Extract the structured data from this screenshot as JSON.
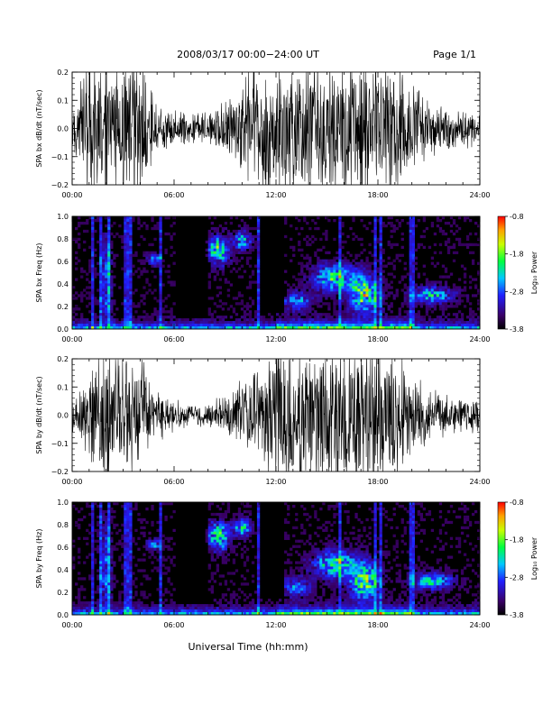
{
  "header": {
    "date_range": "2008/03/17  00:00−24:00 UT",
    "page": "Page 1/1"
  },
  "xaxis": {
    "label": "Universal Time (hh:mm)",
    "ticks": [
      "00:00",
      "06:00",
      "12:00",
      "18:00",
      "24:00"
    ]
  },
  "colorbar": {
    "label": "Log₁₀ Power",
    "ticks": [
      "-0.8",
      "-1.8",
      "-2.8",
      "-3.8"
    ],
    "min": -3.8,
    "max": -0.8
  },
  "chart_data": [
    {
      "type": "line",
      "ylabel": "SPA bx dB/dt (nT/sec)",
      "y_ticks": [
        "0.2",
        "0.1",
        "0.0",
        "−0.1",
        "−0.2"
      ],
      "xlim": [
        0,
        24
      ],
      "ylim": [
        -0.2,
        0.2
      ],
      "envelope_hours": [
        0,
        1,
        1.5,
        2,
        3,
        4,
        5,
        6,
        7,
        8,
        9,
        10,
        11,
        12,
        13,
        14,
        15,
        16,
        17,
        18,
        19,
        20,
        21,
        22,
        23,
        24
      ],
      "envelope_amplitude": [
        0.05,
        0.2,
        0.2,
        0.2,
        0.2,
        0.18,
        0.08,
        0.05,
        0.04,
        0.05,
        0.08,
        0.15,
        0.2,
        0.2,
        0.2,
        0.2,
        0.2,
        0.2,
        0.2,
        0.2,
        0.2,
        0.15,
        0.08,
        0.06,
        0.05,
        0.05
      ]
    },
    {
      "type": "heatmap",
      "ylabel": "SPA bx Freq (Hz)",
      "y_ticks": [
        "1.0",
        "0.8",
        "0.6",
        "0.4",
        "0.2",
        "0.0"
      ],
      "xlim": [
        0,
        24
      ],
      "ylim": [
        0,
        1.0
      ],
      "zlim": [
        -3.8,
        -0.8
      ]
    },
    {
      "type": "line",
      "ylabel": "SPA by dB/dt (nT/sec)",
      "y_ticks": [
        "0.2",
        "0.1",
        "0.0",
        "−0.1",
        "−0.2"
      ],
      "xlim": [
        0,
        24
      ],
      "ylim": [
        -0.2,
        0.2
      ],
      "envelope_hours": [
        0,
        1,
        1.5,
        2,
        3,
        4,
        5,
        6,
        7,
        8,
        9,
        10,
        11,
        12,
        13,
        14,
        15,
        16,
        17,
        18,
        19,
        20,
        21,
        22,
        23,
        24
      ],
      "envelope_amplitude": [
        0.05,
        0.12,
        0.2,
        0.2,
        0.18,
        0.15,
        0.08,
        0.05,
        0.03,
        0.04,
        0.06,
        0.1,
        0.15,
        0.2,
        0.2,
        0.2,
        0.2,
        0.2,
        0.2,
        0.2,
        0.18,
        0.12,
        0.08,
        0.06,
        0.05,
        0.05
      ]
    },
    {
      "type": "heatmap",
      "ylabel": "SPA by Freq (Hz)",
      "y_ticks": [
        "1.0",
        "0.8",
        "0.6",
        "0.4",
        "0.2",
        "0.0"
      ],
      "xlim": [
        0,
        24
      ],
      "ylim": [
        0,
        1.0
      ],
      "zlim": [
        -3.8,
        -0.8
      ]
    }
  ]
}
